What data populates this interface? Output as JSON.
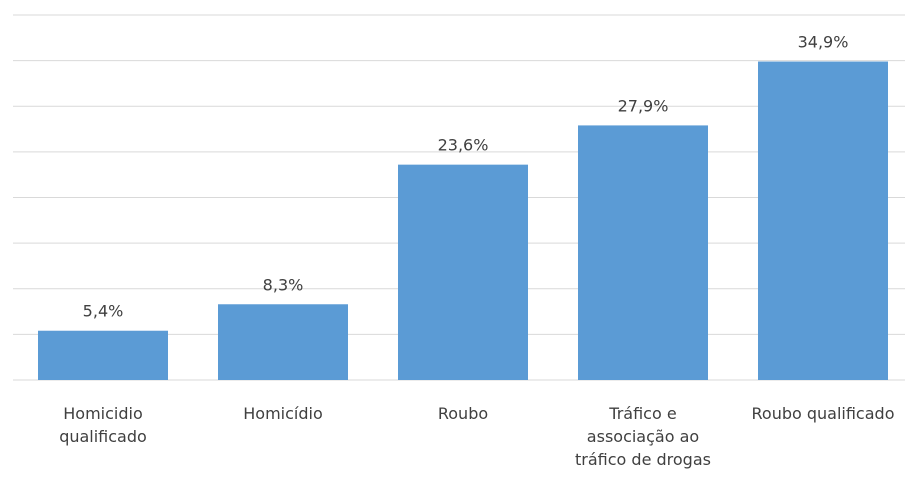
{
  "chart_data": {
    "type": "bar",
    "categories": [
      "Homicidio qualificado",
      "Homicídio",
      "Roubo",
      "Tráfico e associação ao tráfico de drogas",
      "Roubo qualificado"
    ],
    "values": [
      5.4,
      8.3,
      23.6,
      27.9,
      34.9
    ],
    "value_labels": [
      "5,4%",
      "8,3%",
      "23,6%",
      "27,9%",
      "34,9%"
    ],
    "color": "#5b9bd5",
    "ylim": [
      0,
      40
    ],
    "yticks": [
      0,
      5,
      10,
      15,
      20,
      25,
      30,
      35,
      40
    ],
    "grid": true
  }
}
